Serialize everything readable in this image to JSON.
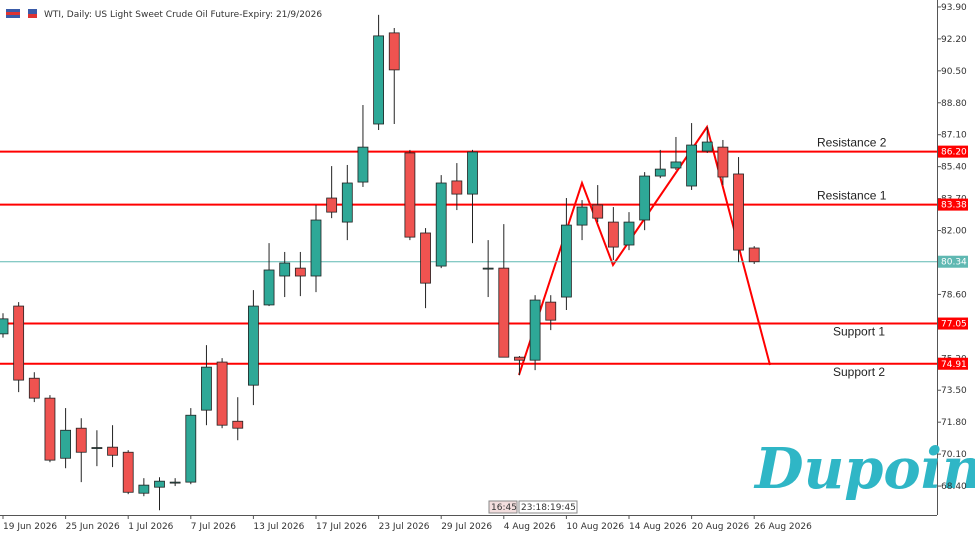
{
  "chart_data": {
    "type": "candlestick",
    "title": "WTI, Daily:  US Light Sweet Crude Oil Future-Expiry: 21/9/2026",
    "categories": [
      "19 Jun 2026",
      null,
      null,
      null,
      "25 Jun 2026",
      null,
      null,
      null,
      "1 Jul 2026",
      null,
      null,
      null,
      "7 Jul 2026",
      null,
      null,
      null,
      "13 Jul 2026",
      null,
      null,
      null,
      "17 Jul 2026",
      null,
      null,
      null,
      "23 Jul 2026",
      null,
      null,
      null,
      "29 Jul 2026",
      null,
      null,
      null,
      "4 Aug 2026",
      null,
      null,
      null,
      "10 Aug 2026",
      null,
      null,
      null,
      "14 Aug 2026",
      null,
      null,
      null,
      "20 Aug 2026",
      null,
      null,
      null,
      "26 Aug 2026"
    ],
    "open": [
      76.5,
      77.98,
      74.14,
      73.08,
      69.88,
      71.48,
      70.42,
      70.47,
      70.2,
      68.02,
      68.34,
      68.61,
      68.61,
      72.44,
      75.0,
      71.85,
      73.77,
      78.04,
      79.58,
      80.0,
      79.58,
      83.73,
      82.45,
      84.58,
      87.67,
      92.52,
      86.13,
      81.87,
      80.11,
      84.64,
      83.94,
      80.0,
      80.0,
      75.26,
      75.1,
      78.19,
      78.46,
      82.29,
      83.36,
      82.45,
      81.23,
      82.56,
      84.9,
      85.33,
      84.37,
      86.23,
      86.44,
      85.01,
      81.07
    ],
    "high": [
      77.6,
      78.19,
      74.46,
      73.24,
      72.55,
      72.01,
      71.37,
      71.64,
      70.31,
      68.82,
      68.87,
      68.82,
      72.55,
      75.9,
      75.21,
      73.13,
      78.83,
      81.33,
      80.86,
      80.86,
      83.36,
      85.43,
      85.49,
      88.68,
      93.48,
      92.78,
      86.29,
      82.13,
      84.95,
      85.59,
      86.29,
      81.49,
      82.34,
      75.32,
      78.56,
      78.56,
      83.73,
      83.62,
      84.42,
      83.25,
      82.98,
      85.11,
      86.29,
      86.98,
      87.72,
      87.51,
      86.82,
      85.91,
      81.17
    ],
    "low": [
      76.3,
      73.4,
      72.87,
      69.67,
      69.35,
      68.61,
      69.46,
      69.41,
      67.97,
      67.86,
      67.11,
      68.4,
      68.5,
      71.64,
      71.48,
      70.84,
      72.71,
      77.98,
      78.46,
      78.51,
      78.72,
      82.66,
      81.49,
      84.32,
      87.35,
      87.67,
      81.49,
      77.87,
      80.0,
      83.09,
      81.33,
      78.46,
      75.26,
      74.3,
      74.57,
      76.7,
      77.77,
      81.49,
      82.45,
      80.43,
      80.96,
      82.02,
      84.79,
      85.22,
      84.16,
      86.13,
      84.42,
      80.32,
      80.22
    ],
    "close": [
      77.3,
      74.04,
      73.08,
      69.78,
      71.37,
      70.2,
      70.45,
      70.04,
      68.07,
      68.45,
      68.66,
      68.61,
      72.17,
      74.73,
      71.64,
      71.48,
      77.98,
      79.9,
      80.27,
      79.58,
      82.56,
      82.98,
      84.53,
      86.44,
      92.36,
      90.55,
      81.65,
      79.2,
      84.53,
      83.94,
      86.18,
      80.0,
      75.26,
      75.1,
      78.3,
      77.23,
      82.29,
      83.25,
      82.66,
      81.12,
      82.45,
      84.9,
      85.27,
      85.65,
      86.55,
      86.71,
      84.85,
      80.96,
      80.34
    ],
    "up_color": "#2ea897",
    "down_color": "#ef5350",
    "ylim": [
      66.86,
      94.27
    ],
    "yticks": [
      {
        "value": 93.9,
        "label": "93.90"
      },
      {
        "value": 92.2,
        "label": "92.20"
      },
      {
        "value": 90.5,
        "label": "90.50"
      },
      {
        "value": 88.8,
        "label": "88.80"
      },
      {
        "value": 87.1,
        "label": "87.10"
      },
      {
        "value": 85.4,
        "label": "85.40"
      },
      {
        "value": 83.7,
        "label": "83.70"
      },
      {
        "value": 82.0,
        "label": "82.00"
      },
      {
        "value": 80.3,
        "label": "80.30"
      },
      {
        "value": 78.6,
        "label": "78.60"
      },
      {
        "value": 76.9,
        "label": "76.90"
      },
      {
        "value": 75.2,
        "label": "75.20"
      },
      {
        "value": 73.5,
        "label": "73.50"
      },
      {
        "value": 71.8,
        "label": "71.80"
      },
      {
        "value": 70.1,
        "label": "70.10"
      },
      {
        "value": 68.4,
        "label": "68.40"
      }
    ],
    "levels": [
      {
        "name": "Resistance 2",
        "value": 86.2,
        "label": "86.20",
        "color": "#ff0000"
      },
      {
        "name": "Resistance 1",
        "value": 83.38,
        "label": "83.38",
        "color": "#ff0000"
      },
      {
        "value": 80.34,
        "label": "80.34",
        "color": "#5fb8b2"
      },
      {
        "name": "Support 1",
        "value": 77.05,
        "label": "77.05",
        "color": "#ff0000"
      },
      {
        "name": "Support 2",
        "value": 74.91,
        "label": "74.91",
        "color": "#ff0000"
      }
    ]
  },
  "time_boxes": [
    "16:45",
    "23:18:19:45"
  ],
  "logo": "Dupoin"
}
